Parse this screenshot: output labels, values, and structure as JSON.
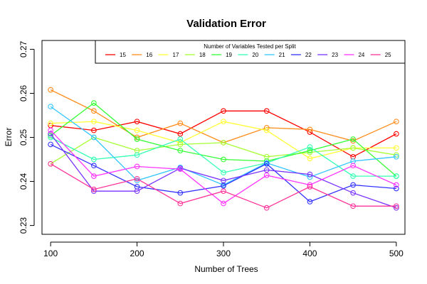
{
  "chart_data": {
    "type": "line",
    "title": "Validation Error",
    "xlabel": "Number of Trees",
    "ylabel": "Error",
    "x": [
      100,
      150,
      200,
      250,
      300,
      350,
      400,
      450,
      500
    ],
    "xlim": [
      90,
      510
    ],
    "ylim": [
      0.228,
      0.272
    ],
    "xticks": [
      100,
      200,
      300,
      400,
      500
    ],
    "yticks": [
      0.23,
      0.24,
      0.25,
      0.26,
      0.27
    ],
    "legend_title": "Number of Variables Tested per Split",
    "legend_position": "top-right",
    "grid": false,
    "marker": "open-circle",
    "series": [
      {
        "name": "15",
        "color": "#ff0000",
        "values": [
          0.2527,
          0.2516,
          0.2536,
          0.2508,
          0.256,
          0.256,
          0.2512,
          0.2456,
          0.2508
        ]
      },
      {
        "name": "16",
        "color": "#ff8c1a",
        "values": [
          0.2608,
          0.256,
          0.25,
          0.2532,
          0.2488,
          0.2522,
          0.2518,
          0.2492,
          0.2536
        ]
      },
      {
        "name": "17",
        "color": "#ffff33",
        "values": [
          0.2532,
          0.2536,
          0.2516,
          0.2488,
          0.2536,
          0.2516,
          0.2452,
          0.2476,
          0.2476
        ]
      },
      {
        "name": "18",
        "color": "#a6ff33",
        "values": [
          0.244,
          0.25,
          0.247,
          0.2484,
          0.2488,
          0.2456,
          0.2466,
          0.2476,
          0.246
        ]
      },
      {
        "name": "19",
        "color": "#33ff33",
        "values": [
          0.2504,
          0.2578,
          0.2496,
          0.247,
          0.245,
          0.2446,
          0.247,
          0.2496,
          0.2412
        ]
      },
      {
        "name": "20",
        "color": "#33ffb3",
        "values": [
          0.25,
          0.245,
          0.246,
          0.2496,
          0.242,
          0.2442,
          0.2478,
          0.2412,
          0.2412
        ]
      },
      {
        "name": "21",
        "color": "#33c6ff",
        "values": [
          0.257,
          0.25,
          0.2402,
          0.2432,
          0.2392,
          0.2442,
          0.241,
          0.2446,
          0.2456
        ]
      },
      {
        "name": "22",
        "color": "#3333ff",
        "values": [
          0.2484,
          0.2436,
          0.2388,
          0.2374,
          0.239,
          0.244,
          0.2354,
          0.2392,
          0.2384
        ]
      },
      {
        "name": "23",
        "color": "#7a33ff",
        "values": [
          0.2508,
          0.2378,
          0.2378,
          0.243,
          0.2402,
          0.2426,
          0.2416,
          0.2374,
          0.234
        ]
      },
      {
        "name": "24",
        "color": "#ff33ff",
        "values": [
          0.2516,
          0.2412,
          0.2434,
          0.2428,
          0.235,
          0.2414,
          0.2392,
          0.2436,
          0.2392
        ]
      },
      {
        "name": "25",
        "color": "#ff3399",
        "values": [
          0.244,
          0.2382,
          0.2406,
          0.235,
          0.2378,
          0.234,
          0.2388,
          0.2344,
          0.2344
        ]
      }
    ]
  }
}
